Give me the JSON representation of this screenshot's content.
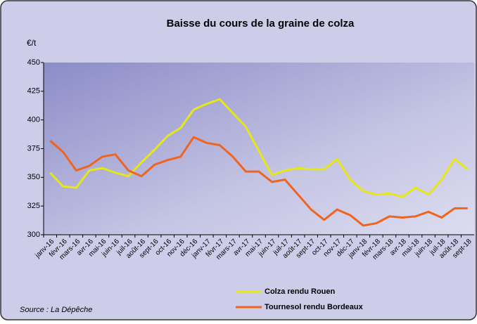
{
  "chart_data": {
    "type": "line",
    "title": "Baisse du cours de la graine de colza",
    "y_label": "€/t",
    "source": "Source : La Dépêche",
    "categories": [
      "janv-16",
      "févr-16",
      "mars-16",
      "avr-16",
      "mai-16",
      "juin-16",
      "juil-16",
      "août-16",
      "sept-16",
      "oct-16",
      "nov-16",
      "déc-16",
      "janv-17",
      "févr-17",
      "mars-17",
      "avr-17",
      "mai-17",
      "juin-17",
      "juil-17",
      "août-17",
      "sept-17",
      "oct-17",
      "nov-17",
      "déc-17",
      "janv-18",
      "févr-18",
      "mars-18",
      "avr-18",
      "mai-18",
      "juin-18",
      "juil-18",
      "août-18",
      "sept-18"
    ],
    "series": [
      {
        "name": "Colza rendu Rouen",
        "color": "#e6e619",
        "values": [
          354,
          342,
          341,
          356,
          358,
          354,
          351,
          363,
          374,
          386,
          393,
          409,
          414,
          418,
          406,
          394,
          373,
          352,
          356,
          358,
          357,
          357,
          366,
          348,
          338,
          335,
          336,
          333,
          341,
          335,
          348,
          366,
          357
        ]
      },
      {
        "name": "Tournesol rendu Bordeaux",
        "color": "#f0641e",
        "values": [
          382,
          372,
          356,
          360,
          368,
          370,
          356,
          351,
          361,
          365,
          368,
          385,
          380,
          378,
          368,
          355,
          355,
          346,
          348,
          335,
          322,
          313,
          322,
          317,
          308,
          310,
          316,
          315,
          316,
          320,
          315,
          323,
          323
        ]
      }
    ],
    "ylim": [
      300,
      450
    ],
    "yticks": [
      300,
      325,
      350,
      375,
      400,
      425,
      450
    ],
    "grid": false,
    "legend": "bottom"
  }
}
